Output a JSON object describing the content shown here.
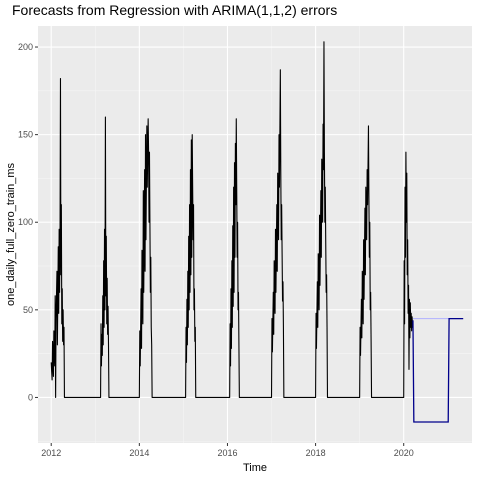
{
  "chart_data": {
    "type": "line",
    "title": "Forecasts from Regression with ARIMA(1,1,2) errors",
    "xlabel": "Time",
    "ylabel": "one_daily_full_zero_train_ms",
    "xlim": [
      2011.7,
      2021.55
    ],
    "ylim": [
      -26,
      212
    ],
    "x_ticks": [
      2012,
      2014,
      2016,
      2018,
      2020
    ],
    "y_ticks": [
      0,
      50,
      100,
      150,
      200
    ],
    "grid": true,
    "legend": "none",
    "colors": {
      "series": "#000000",
      "forecast": "#00008b",
      "forecast_interval": "#b0b0ff"
    },
    "series": [
      {
        "values": [
          [
            2012.0,
            20
          ],
          [
            2012.02,
            10
          ],
          [
            2012.03,
            32
          ],
          [
            2012.05,
            12
          ],
          [
            2012.06,
            38
          ],
          [
            2012.08,
            18
          ],
          [
            2012.09,
            58
          ],
          [
            2012.1,
            0
          ],
          [
            2012.11,
            45
          ],
          [
            2012.13,
            72
          ],
          [
            2012.14,
            30
          ],
          [
            2012.16,
            86
          ],
          [
            2012.17,
            48
          ],
          [
            2012.18,
            96
          ],
          [
            2012.19,
            60
          ],
          [
            2012.2,
            92
          ],
          [
            2012.21,
            182
          ],
          [
            2012.22,
            70
          ],
          [
            2012.23,
            110
          ],
          [
            2012.24,
            42
          ],
          [
            2012.25,
            62
          ],
          [
            2012.26,
            32
          ],
          [
            2012.27,
            50
          ],
          [
            2012.28,
            30
          ],
          [
            2012.29,
            40
          ],
          [
            2012.3,
            0
          ],
          [
            2013.12,
            0
          ],
          [
            2013.13,
            42
          ],
          [
            2013.14,
            18
          ],
          [
            2013.15,
            36
          ],
          [
            2013.16,
            24
          ],
          [
            2013.17,
            58
          ],
          [
            2013.18,
            30
          ],
          [
            2013.19,
            78
          ],
          [
            2013.2,
            40
          ],
          [
            2013.21,
            96
          ],
          [
            2013.22,
            50
          ],
          [
            2013.23,
            160
          ],
          [
            2013.24,
            58
          ],
          [
            2013.25,
            92
          ],
          [
            2013.26,
            42
          ],
          [
            2013.27,
            68
          ],
          [
            2013.28,
            36
          ],
          [
            2013.29,
            52
          ],
          [
            2013.3,
            30
          ],
          [
            2013.31,
            0
          ],
          [
            2014.0,
            0
          ],
          [
            2014.01,
            38
          ],
          [
            2014.02,
            18
          ],
          [
            2014.04,
            62
          ],
          [
            2014.05,
            28
          ],
          [
            2014.06,
            84
          ],
          [
            2014.08,
            42
          ],
          [
            2014.09,
            118
          ],
          [
            2014.1,
            60
          ],
          [
            2014.12,
            130
          ],
          [
            2014.13,
            72
          ],
          [
            2014.14,
            150
          ],
          [
            2014.15,
            90
          ],
          [
            2014.17,
            155
          ],
          [
            2014.18,
            120
          ],
          [
            2014.2,
            159
          ],
          [
            2014.21,
            140
          ],
          [
            2014.22,
            100
          ],
          [
            2014.23,
            140
          ],
          [
            2014.25,
            60
          ],
          [
            2014.26,
            80
          ],
          [
            2014.27,
            40
          ],
          [
            2014.28,
            30
          ],
          [
            2014.29,
            0
          ],
          [
            2015.05,
            0
          ],
          [
            2015.06,
            40
          ],
          [
            2015.07,
            20
          ],
          [
            2015.08,
            56
          ],
          [
            2015.09,
            30
          ],
          [
            2015.1,
            72
          ],
          [
            2015.11,
            40
          ],
          [
            2015.12,
            92
          ],
          [
            2015.13,
            50
          ],
          [
            2015.14,
            110
          ],
          [
            2015.15,
            60
          ],
          [
            2015.16,
            130
          ],
          [
            2015.17,
            70
          ],
          [
            2015.18,
            147
          ],
          [
            2015.19,
            80
          ],
          [
            2015.2,
            150
          ],
          [
            2015.21,
            120
          ],
          [
            2015.22,
            90
          ],
          [
            2015.23,
            110
          ],
          [
            2015.24,
            50
          ],
          [
            2015.25,
            62
          ],
          [
            2015.26,
            32
          ],
          [
            2015.27,
            40
          ],
          [
            2015.28,
            0
          ],
          [
            2016.05,
            0
          ],
          [
            2016.06,
            42
          ],
          [
            2016.07,
            18
          ],
          [
            2016.08,
            62
          ],
          [
            2016.09,
            28
          ],
          [
            2016.1,
            78
          ],
          [
            2016.11,
            40
          ],
          [
            2016.12,
            98
          ],
          [
            2016.13,
            52
          ],
          [
            2016.14,
            120
          ],
          [
            2016.15,
            60
          ],
          [
            2016.16,
            134
          ],
          [
            2016.17,
            80
          ],
          [
            2016.18,
            145
          ],
          [
            2016.19,
            110
          ],
          [
            2016.2,
            159
          ],
          [
            2016.21,
            120
          ],
          [
            2016.22,
            80
          ],
          [
            2016.23,
            100
          ],
          [
            2016.24,
            50
          ],
          [
            2016.25,
            60
          ],
          [
            2016.26,
            30
          ],
          [
            2016.27,
            0
          ],
          [
            2017.0,
            0
          ],
          [
            2017.01,
            45
          ],
          [
            2017.02,
            26
          ],
          [
            2017.04,
            60
          ],
          [
            2017.05,
            36
          ],
          [
            2017.06,
            78
          ],
          [
            2017.08,
            48
          ],
          [
            2017.09,
            96
          ],
          [
            2017.1,
            60
          ],
          [
            2017.12,
            110
          ],
          [
            2017.13,
            72
          ],
          [
            2017.14,
            128
          ],
          [
            2017.16,
            90
          ],
          [
            2017.17,
            150
          ],
          [
            2017.18,
            120
          ],
          [
            2017.2,
            187
          ],
          [
            2017.21,
            130
          ],
          [
            2017.22,
            90
          ],
          [
            2017.23,
            110
          ],
          [
            2017.25,
            55
          ],
          [
            2017.26,
            66
          ],
          [
            2017.27,
            40
          ],
          [
            2017.28,
            0
          ],
          [
            2018.0,
            0
          ],
          [
            2018.01,
            48
          ],
          [
            2018.02,
            28
          ],
          [
            2018.04,
            66
          ],
          [
            2018.05,
            40
          ],
          [
            2018.06,
            82
          ],
          [
            2018.08,
            50
          ],
          [
            2018.09,
            104
          ],
          [
            2018.1,
            64
          ],
          [
            2018.12,
            118
          ],
          [
            2018.13,
            80
          ],
          [
            2018.14,
            136
          ],
          [
            2018.16,
            100
          ],
          [
            2018.17,
            156
          ],
          [
            2018.18,
            130
          ],
          [
            2018.19,
            203
          ],
          [
            2018.2,
            140
          ],
          [
            2018.21,
            100
          ],
          [
            2018.22,
            120
          ],
          [
            2018.24,
            60
          ],
          [
            2018.25,
            70
          ],
          [
            2018.26,
            40
          ],
          [
            2018.27,
            0
          ],
          [
            2019.0,
            0
          ],
          [
            2019.01,
            40
          ],
          [
            2019.02,
            24
          ],
          [
            2019.04,
            56
          ],
          [
            2019.05,
            34
          ],
          [
            2019.06,
            72
          ],
          [
            2019.08,
            42
          ],
          [
            2019.09,
            90
          ],
          [
            2019.1,
            56
          ],
          [
            2019.12,
            108
          ],
          [
            2019.13,
            70
          ],
          [
            2019.14,
            120
          ],
          [
            2019.16,
            90
          ],
          [
            2019.17,
            130
          ],
          [
            2019.18,
            110
          ],
          [
            2019.2,
            155
          ],
          [
            2019.21,
            115
          ],
          [
            2019.22,
            80
          ],
          [
            2019.23,
            100
          ],
          [
            2019.24,
            50
          ],
          [
            2019.25,
            60
          ],
          [
            2019.26,
            32
          ],
          [
            2019.27,
            0
          ],
          [
            2020.0,
            0
          ],
          [
            2020.01,
            78
          ],
          [
            2020.02,
            42
          ],
          [
            2020.03,
            120
          ],
          [
            2020.04,
            80
          ],
          [
            2020.05,
            140
          ],
          [
            2020.06,
            100
          ],
          [
            2020.07,
            128
          ],
          [
            2020.08,
            70
          ],
          [
            2020.09,
            90
          ],
          [
            2020.1,
            48
          ],
          [
            2020.11,
            64
          ],
          [
            2020.12,
            16
          ],
          [
            2020.13,
            56
          ],
          [
            2020.14,
            34
          ],
          [
            2020.15,
            54
          ],
          [
            2020.16,
            40
          ],
          [
            2020.17,
            48
          ],
          [
            2020.18,
            38
          ],
          [
            2020.19,
            46
          ],
          [
            2020.2,
            40
          ],
          [
            2020.21,
            44
          ]
        ]
      },
      {
        "values": [
          [
            2020.21,
            44
          ],
          [
            2020.23,
            -14
          ],
          [
            2021.01,
            -14
          ],
          [
            2021.03,
            45
          ],
          [
            2021.35,
            45
          ]
        ]
      }
    ]
  }
}
